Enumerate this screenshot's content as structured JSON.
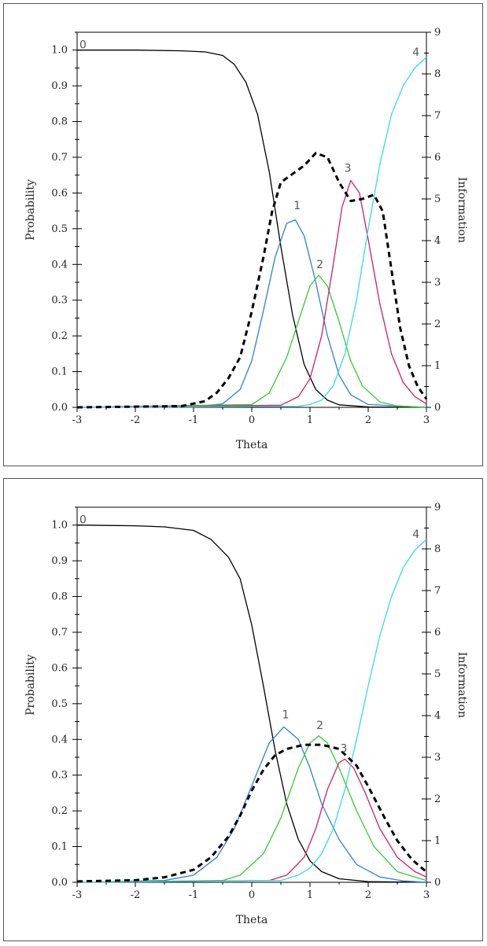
{
  "chart_data": [
    {
      "type": "line",
      "xlabel": "Theta",
      "ylabel": "Probability",
      "y2label": "Information",
      "xlim": [
        -3,
        3
      ],
      "ylim": [
        0,
        1.05
      ],
      "y2lim": [
        0,
        9
      ],
      "xticks": [
        "-3",
        "-2",
        "-1",
        "0",
        "1",
        "2",
        "3"
      ],
      "yticks": [
        "0.0",
        "0.1",
        "0.2",
        "0.3",
        "0.4",
        "0.5",
        "0.6",
        "0.7",
        "0.8",
        "0.9",
        "1.0"
      ],
      "y2ticks": [
        "0",
        "1",
        "2",
        "3",
        "4",
        "5",
        "6",
        "7",
        "8",
        "9"
      ],
      "series": [
        {
          "name": "0",
          "color": "#000000",
          "axis": "left",
          "points": [
            [
              -3,
              1.0
            ],
            [
              -2,
              1.0
            ],
            [
              -1.2,
              0.998
            ],
            [
              -0.8,
              0.995
            ],
            [
              -0.5,
              0.985
            ],
            [
              -0.3,
              0.96
            ],
            [
              -0.1,
              0.91
            ],
            [
              0.1,
              0.82
            ],
            [
              0.3,
              0.66
            ],
            [
              0.5,
              0.45
            ],
            [
              0.7,
              0.26
            ],
            [
              0.9,
              0.12
            ],
            [
              1.1,
              0.05
            ],
            [
              1.3,
              0.02
            ],
            [
              1.5,
              0.007
            ],
            [
              2,
              0.001
            ],
            [
              3,
              0.0
            ]
          ]
        },
        {
          "name": "1",
          "color": "#2f80d0",
          "axis": "left",
          "points": [
            [
              -3,
              0
            ],
            [
              -1,
              0.001
            ],
            [
              -0.5,
              0.01
            ],
            [
              -0.2,
              0.05
            ],
            [
              0,
              0.13
            ],
            [
              0.2,
              0.27
            ],
            [
              0.4,
              0.42
            ],
            [
              0.6,
              0.515
            ],
            [
              0.75,
              0.525
            ],
            [
              0.9,
              0.48
            ],
            [
              1.1,
              0.35
            ],
            [
              1.3,
              0.2
            ],
            [
              1.5,
              0.09
            ],
            [
              1.7,
              0.035
            ],
            [
              2,
              0.008
            ],
            [
              3,
              0
            ]
          ]
        },
        {
          "name": "2",
          "color": "#33cc33",
          "axis": "left",
          "points": [
            [
              -3,
              0
            ],
            [
              0,
              0.008
            ],
            [
              0.3,
              0.04
            ],
            [
              0.6,
              0.14
            ],
            [
              0.8,
              0.24
            ],
            [
              1.0,
              0.34
            ],
            [
              1.15,
              0.37
            ],
            [
              1.3,
              0.34
            ],
            [
              1.5,
              0.24
            ],
            [
              1.7,
              0.13
            ],
            [
              1.9,
              0.06
            ],
            [
              2.2,
              0.015
            ],
            [
              2.5,
              0.004
            ],
            [
              3,
              0
            ]
          ]
        },
        {
          "name": "3",
          "color": "#cc1f6a",
          "axis": "left",
          "points": [
            [
              -3,
              0
            ],
            [
              0.5,
              0.006
            ],
            [
              0.8,
              0.03
            ],
            [
              1.0,
              0.08
            ],
            [
              1.2,
              0.2
            ],
            [
              1.4,
              0.4
            ],
            [
              1.55,
              0.56
            ],
            [
              1.7,
              0.635
            ],
            [
              1.85,
              0.6
            ],
            [
              2.0,
              0.47
            ],
            [
              2.2,
              0.29
            ],
            [
              2.4,
              0.15
            ],
            [
              2.6,
              0.07
            ],
            [
              2.8,
              0.03
            ],
            [
              3,
              0.01
            ]
          ]
        },
        {
          "name": "4",
          "color": "#33dddd",
          "axis": "left",
          "points": [
            [
              -3,
              0
            ],
            [
              0.8,
              0.003
            ],
            [
              1.0,
              0.008
            ],
            [
              1.2,
              0.02
            ],
            [
              1.4,
              0.06
            ],
            [
              1.6,
              0.15
            ],
            [
              1.8,
              0.3
            ],
            [
              2.0,
              0.5
            ],
            [
              2.2,
              0.68
            ],
            [
              2.4,
              0.82
            ],
            [
              2.6,
              0.9
            ],
            [
              2.8,
              0.95
            ],
            [
              3,
              0.98
            ]
          ]
        },
        {
          "name": "Information",
          "color": "#000000",
          "dashed": true,
          "axis": "right",
          "points": [
            [
              -3,
              0
            ],
            [
              -1.2,
              0.03
            ],
            [
              -0.8,
              0.15
            ],
            [
              -0.6,
              0.35
            ],
            [
              -0.4,
              0.7
            ],
            [
              -0.2,
              1.2
            ],
            [
              0,
              2.3
            ],
            [
              0.2,
              3.6
            ],
            [
              0.35,
              4.7
            ],
            [
              0.5,
              5.4
            ],
            [
              0.7,
              5.6
            ],
            [
              0.9,
              5.8
            ],
            [
              1.1,
              6.1
            ],
            [
              1.3,
              6.0
            ],
            [
              1.5,
              5.4
            ],
            [
              1.7,
              4.95
            ],
            [
              1.9,
              5.0
            ],
            [
              2.1,
              5.1
            ],
            [
              2.25,
              4.7
            ],
            [
              2.4,
              3.3
            ],
            [
              2.55,
              1.9
            ],
            [
              2.7,
              1.0
            ],
            [
              2.85,
              0.5
            ],
            [
              3,
              0.2
            ]
          ]
        }
      ],
      "labels": [
        {
          "text": "0",
          "x": -2.9,
          "y": 1.0
        },
        {
          "text": "1",
          "x": 0.78,
          "y": 0.55
        },
        {
          "text": "2",
          "x": 1.17,
          "y": 0.385
        },
        {
          "text": "3",
          "x": 1.65,
          "y": 0.655
        },
        {
          "text": "4",
          "x": 2.82,
          "y": 0.98
        }
      ]
    },
    {
      "type": "line",
      "xlabel": "Theta",
      "ylabel": "Probability",
      "y2label": "Information",
      "xlim": [
        -3,
        3
      ],
      "ylim": [
        0,
        1.05
      ],
      "y2lim": [
        0,
        9
      ],
      "xticks": [
        "-3",
        "-2",
        "-1",
        "0",
        "1",
        "2",
        "3"
      ],
      "yticks": [
        "0.0",
        "0.1",
        "0.2",
        "0.3",
        "0.4",
        "0.5",
        "0.6",
        "0.7",
        "0.8",
        "0.9",
        "1.0"
      ],
      "y2ticks": [
        "0",
        "1",
        "2",
        "3",
        "4",
        "5",
        "6",
        "7",
        "8",
        "9"
      ],
      "series": [
        {
          "name": "0",
          "color": "#000000",
          "axis": "left",
          "points": [
            [
              -3,
              1.0
            ],
            [
              -2,
              0.998
            ],
            [
              -1.5,
              0.995
            ],
            [
              -1.0,
              0.985
            ],
            [
              -0.7,
              0.96
            ],
            [
              -0.4,
              0.91
            ],
            [
              -0.2,
              0.85
            ],
            [
              0,
              0.72
            ],
            [
              0.2,
              0.55
            ],
            [
              0.4,
              0.37
            ],
            [
              0.6,
              0.22
            ],
            [
              0.8,
              0.12
            ],
            [
              1.0,
              0.06
            ],
            [
              1.2,
              0.03
            ],
            [
              1.5,
              0.01
            ],
            [
              2,
              0.002
            ],
            [
              3,
              0
            ]
          ]
        },
        {
          "name": "1",
          "color": "#2f80d0",
          "axis": "left",
          "points": [
            [
              -3,
              0
            ],
            [
              -1.5,
              0.005
            ],
            [
              -1,
              0.02
            ],
            [
              -0.6,
              0.07
            ],
            [
              -0.3,
              0.15
            ],
            [
              0,
              0.27
            ],
            [
              0.3,
              0.39
            ],
            [
              0.55,
              0.435
            ],
            [
              0.8,
              0.4
            ],
            [
              1.0,
              0.32
            ],
            [
              1.2,
              0.22
            ],
            [
              1.5,
              0.12
            ],
            [
              1.8,
              0.05
            ],
            [
              2.2,
              0.015
            ],
            [
              2.6,
              0.004
            ],
            [
              3,
              0
            ]
          ]
        },
        {
          "name": "2",
          "color": "#33cc33",
          "axis": "left",
          "points": [
            [
              -3,
              0
            ],
            [
              -0.5,
              0.005
            ],
            [
              -0.2,
              0.02
            ],
            [
              0.2,
              0.08
            ],
            [
              0.5,
              0.18
            ],
            [
              0.8,
              0.32
            ],
            [
              1.0,
              0.39
            ],
            [
              1.15,
              0.41
            ],
            [
              1.3,
              0.39
            ],
            [
              1.5,
              0.32
            ],
            [
              1.8,
              0.2
            ],
            [
              2.1,
              0.1
            ],
            [
              2.5,
              0.03
            ],
            [
              3,
              0.005
            ]
          ]
        },
        {
          "name": "3",
          "color": "#cc1f6a",
          "axis": "left",
          "points": [
            [
              -3,
              0
            ],
            [
              0.3,
              0.005
            ],
            [
              0.6,
              0.02
            ],
            [
              0.9,
              0.07
            ],
            [
              1.1,
              0.15
            ],
            [
              1.3,
              0.26
            ],
            [
              1.5,
              0.335
            ],
            [
              1.6,
              0.345
            ],
            [
              1.75,
              0.32
            ],
            [
              1.95,
              0.25
            ],
            [
              2.2,
              0.15
            ],
            [
              2.5,
              0.07
            ],
            [
              2.8,
              0.03
            ],
            [
              3,
              0.015
            ]
          ]
        },
        {
          "name": "4",
          "color": "#33dddd",
          "axis": "left",
          "points": [
            [
              -3,
              0
            ],
            [
              0.5,
              0.005
            ],
            [
              0.8,
              0.02
            ],
            [
              1.0,
              0.04
            ],
            [
              1.2,
              0.08
            ],
            [
              1.4,
              0.15
            ],
            [
              1.6,
              0.26
            ],
            [
              1.8,
              0.4
            ],
            [
              2.0,
              0.55
            ],
            [
              2.2,
              0.69
            ],
            [
              2.4,
              0.8
            ],
            [
              2.6,
              0.88
            ],
            [
              2.8,
              0.93
            ],
            [
              3,
              0.96
            ]
          ]
        },
        {
          "name": "Information",
          "color": "#000000",
          "dashed": true,
          "axis": "right",
          "points": [
            [
              -3,
              0.02
            ],
            [
              -2,
              0.05
            ],
            [
              -1.5,
              0.12
            ],
            [
              -1.0,
              0.3
            ],
            [
              -0.7,
              0.6
            ],
            [
              -0.4,
              1.1
            ],
            [
              -0.2,
              1.6
            ],
            [
              0,
              2.2
            ],
            [
              0.2,
              2.7
            ],
            [
              0.4,
              3.05
            ],
            [
              0.6,
              3.2
            ],
            [
              0.9,
              3.3
            ],
            [
              1.2,
              3.3
            ],
            [
              1.5,
              3.2
            ],
            [
              1.8,
              2.8
            ],
            [
              2.0,
              2.3
            ],
            [
              2.3,
              1.5
            ],
            [
              2.5,
              1.0
            ],
            [
              2.75,
              0.55
            ],
            [
              3,
              0.25
            ]
          ]
        }
      ],
      "labels": [
        {
          "text": "0",
          "x": -2.9,
          "y": 1.0
        },
        {
          "text": "1",
          "x": 0.58,
          "y": 0.455
        },
        {
          "text": "2",
          "x": 1.17,
          "y": 0.425
        },
        {
          "text": "3",
          "x": 1.58,
          "y": 0.36
        },
        {
          "text": "4",
          "x": 2.82,
          "y": 0.96
        }
      ]
    }
  ]
}
